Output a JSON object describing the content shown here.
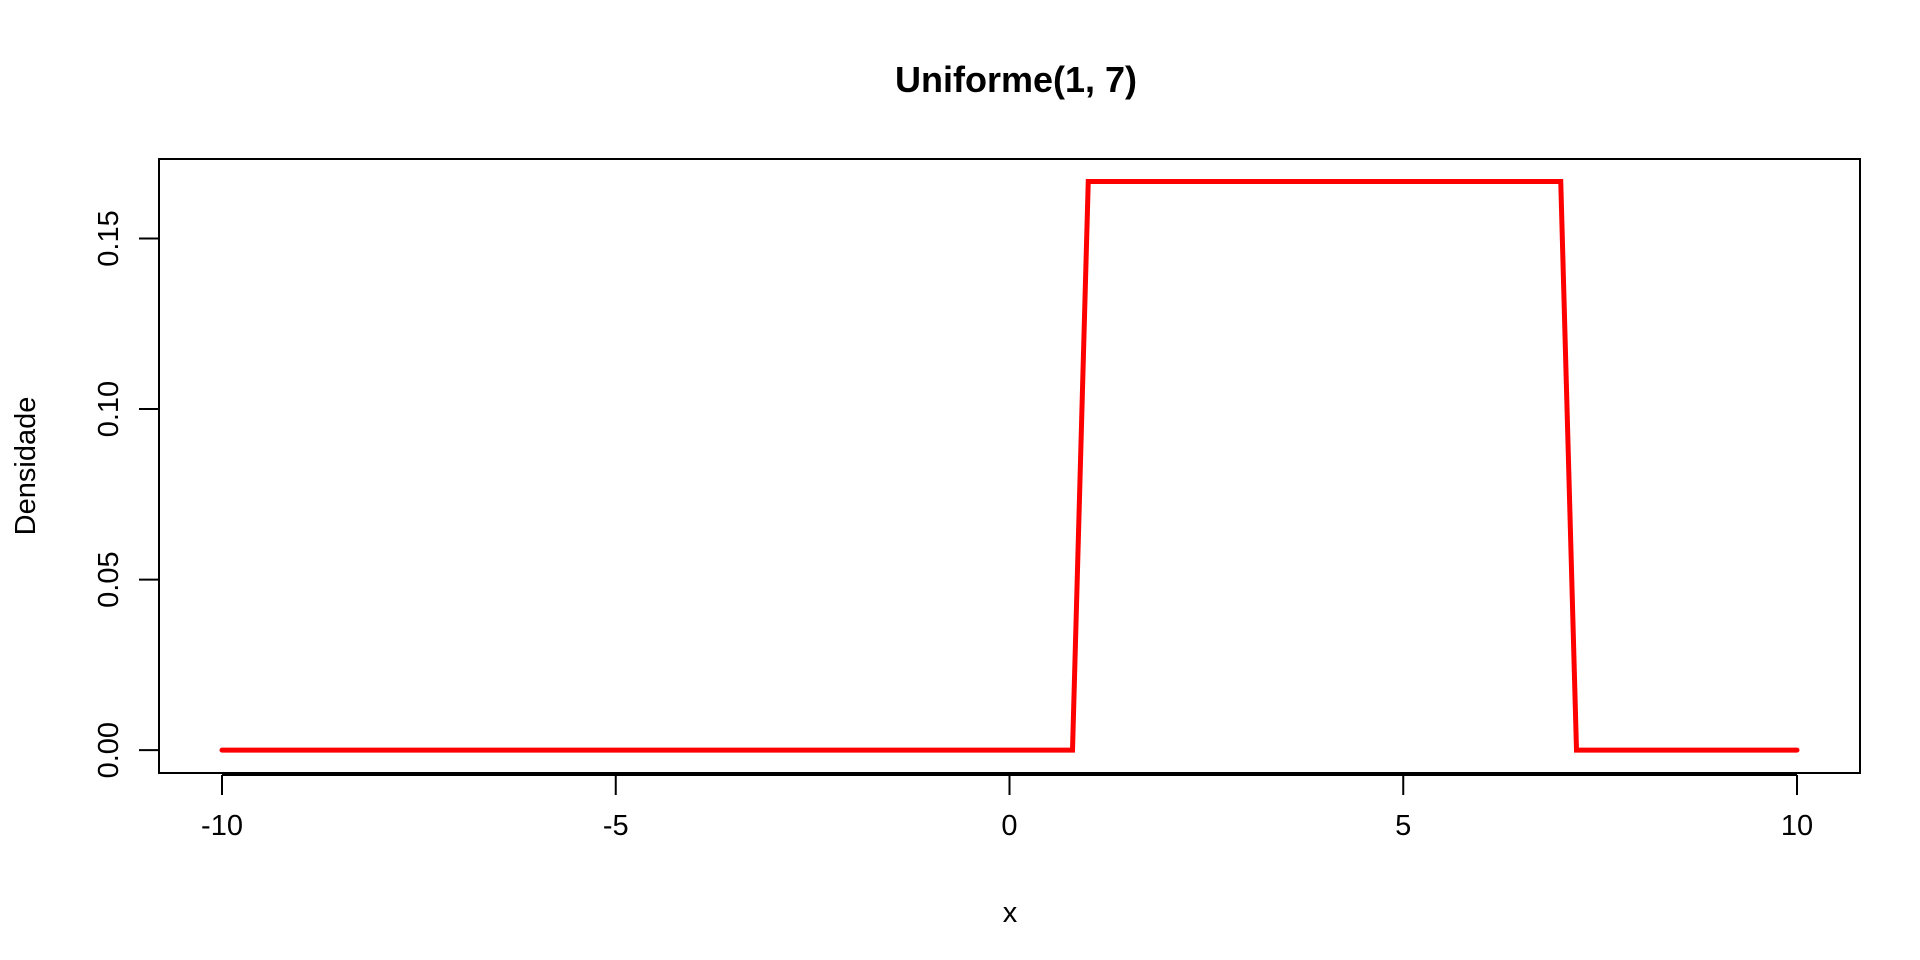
{
  "chart_data": {
    "type": "line",
    "title": "Uniforme(1, 7)",
    "xlabel": "x",
    "ylabel": "Densidade",
    "xlim": [
      -10.8,
      10.8
    ],
    "ylim": [
      -0.0067,
      0.1733
    ],
    "x_ticks": [
      -10,
      -5,
      0,
      5,
      10
    ],
    "x_tick_labels": [
      "-10",
      "-5",
      "0",
      "5",
      "10"
    ],
    "y_ticks": [
      0.0,
      0.05,
      0.1,
      0.15
    ],
    "y_tick_labels": [
      "0.00",
      "0.05",
      "0.10",
      "0.15"
    ],
    "grid": false,
    "series": [
      {
        "color": "#ff0000",
        "x": [
          -10,
          0.8,
          1.0,
          7.0,
          7.2,
          10
        ],
        "y": [
          0,
          0,
          0.1667,
          0.1667,
          0,
          0
        ]
      }
    ]
  }
}
